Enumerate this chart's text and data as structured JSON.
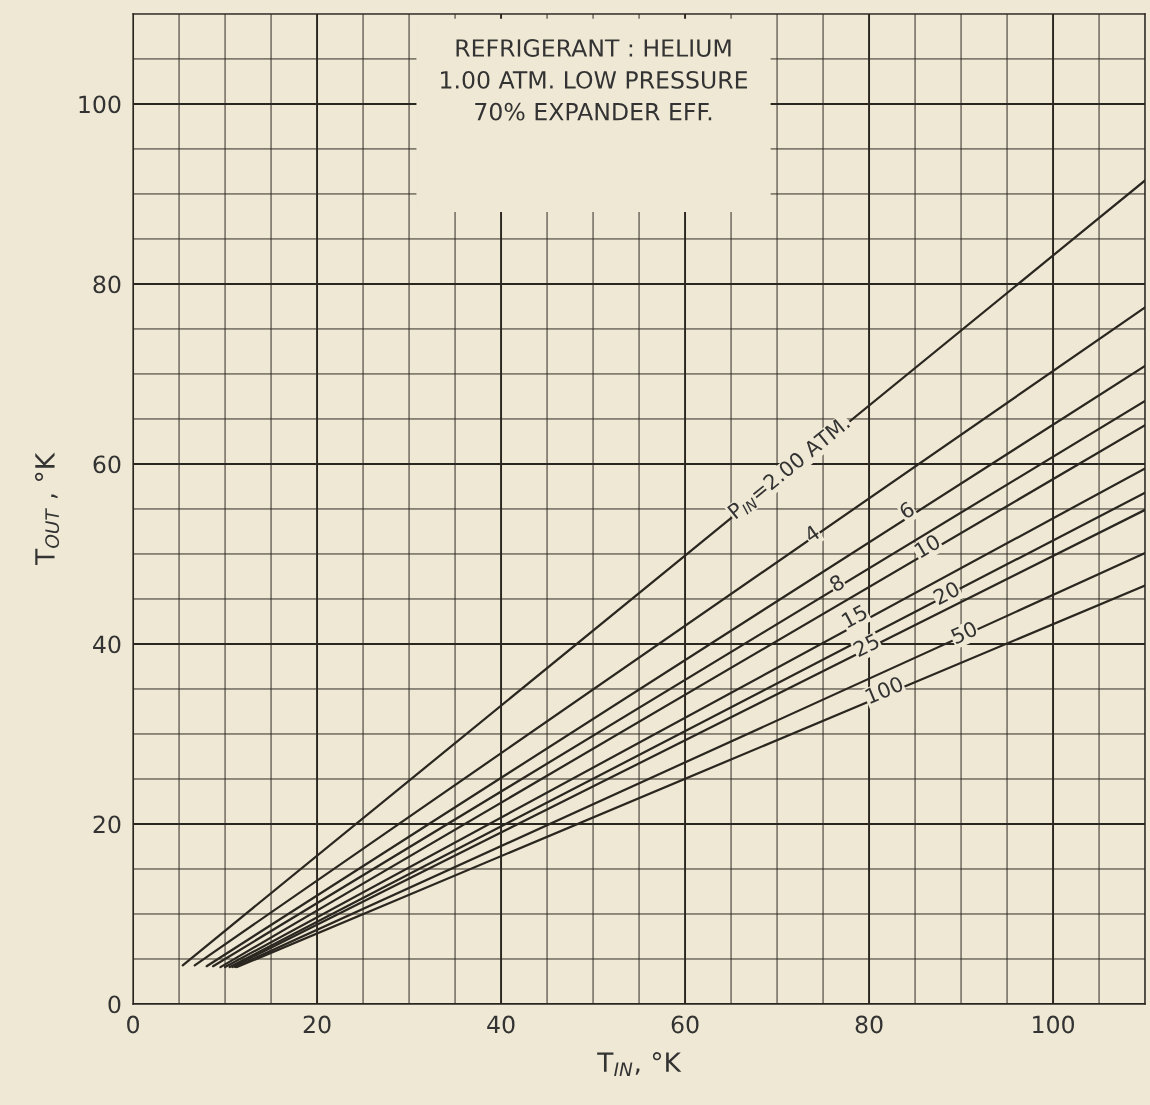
{
  "chart_data": {
    "type": "line",
    "title": "REFRIGERANT : HELIUM\n1.00 ATM. LOW PRESSURE\n70% EXPANDER EFF.",
    "xlabel": "T$_{IN}$, °K",
    "ylabel": "T$_{OUT}$ , °K",
    "xlim": [
      0,
      110
    ],
    "ylim": [
      0,
      110
    ],
    "xticks": [
      0,
      {
        "value": 5,
        "label": null
      },
      {
        "value": 10,
        "label": null
      },
      {
        "value": 15,
        "label": null
      },
      20,
      {
        "value": 25,
        "label": null
      },
      {
        "value": 30,
        "label": null
      },
      {
        "value": 35,
        "label": null
      },
      40,
      {
        "value": 45,
        "label": null
      },
      {
        "value": 50,
        "label": null
      },
      {
        "value": 55,
        "label": null
      },
      60,
      {
        "value": 65,
        "label": null
      },
      {
        "value": 70,
        "label": null
      },
      {
        "value": 75,
        "label": null
      },
      80,
      {
        "value": 85,
        "label": null
      },
      {
        "value": 90,
        "label": null
      },
      {
        "value": 95,
        "label": null
      },
      100,
      {
        "value": 105,
        "label": null
      },
      {
        "value": 110,
        "label": null
      }
    ],
    "yticks": [
      0,
      {
        "value": 5,
        "label": null
      },
      {
        "value": 10,
        "label": null
      },
      {
        "value": 15,
        "label": null
      },
      20,
      {
        "value": 25,
        "label": null
      },
      {
        "value": 30,
        "label": null
      },
      {
        "value": 35,
        "label": null
      },
      40,
      {
        "value": 45,
        "label": null
      },
      {
        "value": 50,
        "label": null
      },
      {
        "value": 55,
        "label": null
      },
      60,
      {
        "value": 65,
        "label": null
      },
      {
        "value": 70,
        "label": null
      },
      {
        "value": 75,
        "label": null
      },
      80,
      {
        "value": 85,
        "label": null
      },
      {
        "value": 90,
        "label": null
      },
      {
        "value": 95,
        "label": null
      },
      100,
      {
        "value": 105,
        "label": null
      },
      {
        "value": 110,
        "label": null
      }
    ],
    "grid": true,
    "marker": "none",
    "line_style": "solid",
    "series": [
      {
        "color": "#2a2620",
        "x": [
          5.4,
          110
        ],
        "values": [
          4.3,
          91.5
        ]
      },
      {
        "color": "#2a2620",
        "x": [
          6.7,
          110
        ],
        "values": [
          4.3,
          77.4
        ]
      },
      {
        "color": "#2a2620",
        "x": [
          8.0,
          110
        ],
        "values": [
          4.2,
          70.9
        ]
      },
      {
        "color": "#2a2620",
        "x": [
          8.7,
          110
        ],
        "values": [
          4.2,
          67.0
        ]
      },
      {
        "color": "#2a2620",
        "x": [
          9.5,
          110
        ],
        "values": [
          4.1,
          64.3
        ]
      },
      {
        "color": "#2a2620",
        "x": [
          10.0,
          110
        ],
        "values": [
          4.1,
          59.5
        ]
      },
      {
        "color": "#2a2620",
        "x": [
          10.5,
          110
        ],
        "values": [
          4.1,
          56.8
        ]
      },
      {
        "color": "#2a2620",
        "x": [
          10.8,
          110
        ],
        "values": [
          4.1,
          54.9
        ]
      },
      {
        "color": "#2a2620",
        "x": [
          11.1,
          110
        ],
        "values": [
          4.1,
          50.1
        ]
      },
      {
        "color": "#2a2620",
        "x": [
          11.3,
          110
        ],
        "values": [
          4.1,
          46.5
        ]
      }
    ],
    "annotations": [
      {
        "text": "P$_{IN}$=2.00 ATM.",
        "x": 71.4,
        "y": 59.5
      },
      {
        "text": "4",
        "x": 73.9,
        "y": 52.1
      },
      {
        "text": "6",
        "x": 84.2,
        "y": 54.7
      },
      {
        "text": "8",
        "x": 76.6,
        "y": 46.6
      },
      {
        "text": "10",
        "x": 86.4,
        "y": 50.7
      },
      {
        "text": "15",
        "x": 78.5,
        "y": 42.9
      },
      {
        "text": "20",
        "x": 88.5,
        "y": 45.5
      },
      {
        "text": "25",
        "x": 79.8,
        "y": 39.7
      },
      {
        "text": "50",
        "x": 90.4,
        "y": 41.1
      },
      {
        "text": "100",
        "x": 81.7,
        "y": 34.7
      }
    ]
  }
}
